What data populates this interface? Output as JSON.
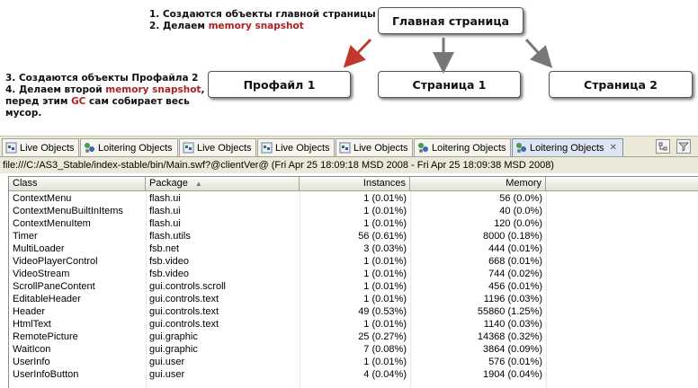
{
  "annotations": {
    "top_lines": [
      "1. Создаются объекты главной страницы",
      "2. Делаем "
    ],
    "top_highlight": "memory snapshot",
    "left": {
      "line1": "3. Создаются объекты Профайла 2",
      "line2_prefix": "4. Делаем второй ",
      "line2_highlight": "memory snapshot",
      "line2_suffix": ",",
      "line3_prefix": "перед этим ",
      "line3_highlight": "GC",
      "line3_suffix": " сам собирает весь",
      "line4": "мусор."
    }
  },
  "diagram": {
    "main": "Главная страница",
    "profile": "Профайл 1",
    "page1": "Страница 1",
    "page2": "Страница 2"
  },
  "colors": {
    "highlight": "#b02020",
    "red_arrow": "#c0392b",
    "gray_arrow": "#777777"
  },
  "tabs": [
    {
      "label": "Live Objects",
      "icon": "live-objects-icon"
    },
    {
      "label": "Loitering Objects",
      "icon": "loitering-objects-icon"
    },
    {
      "label": "Live Objects",
      "icon": "live-objects-icon"
    },
    {
      "label": "Live Objects",
      "icon": "live-objects-icon"
    },
    {
      "label": "Live Objects",
      "icon": "live-objects-icon"
    },
    {
      "label": "Loitering Objects",
      "icon": "loitering-objects-icon"
    },
    {
      "label": "Loitering Objects",
      "icon": "loitering-objects-icon",
      "active": true
    }
  ],
  "path": "file:///C:/AS3_Stable/index-stable/bin/Main.swf?@clientVer@ (Fri Apr 25 18:09:18 MSD 2008 - Fri Apr 25 18:09:38 MSD 2008)",
  "table": {
    "headers": [
      "Class",
      "Package",
      "Instances",
      "Memory"
    ],
    "rows": [
      [
        "ContextMenu",
        "flash.ui",
        "1 (0.01%)",
        "56 (0.0%)"
      ],
      [
        "ContextMenuBuiltInItems",
        "flash.ui",
        "1 (0.01%)",
        "40 (0.0%)"
      ],
      [
        "ContextMenuItem",
        "flash.ui",
        "1 (0.01%)",
        "120 (0.0%)"
      ],
      [
        "Timer",
        "flash.utils",
        "56 (0.61%)",
        "8000 (0.18%)"
      ],
      [
        "MultiLoader",
        "fsb.net",
        "3 (0.03%)",
        "444 (0.01%)"
      ],
      [
        "VideoPlayerControl",
        "fsb.video",
        "1 (0.01%)",
        "668 (0.01%)"
      ],
      [
        "VideoStream",
        "fsb.video",
        "1 (0.01%)",
        "744 (0.02%)"
      ],
      [
        "ScrollPaneContent",
        "gui.controls.scroll",
        "1 (0.01%)",
        "456 (0.01%)"
      ],
      [
        "EditableHeader",
        "gui.controls.text",
        "1 (0.01%)",
        "1196 (0.03%)"
      ],
      [
        "Header",
        "gui.controls.text",
        "49 (0.53%)",
        "55860 (1.25%)"
      ],
      [
        "HtmlText",
        "gui.controls.text",
        "1 (0.01%)",
        "1140 (0.03%)"
      ],
      [
        "RemotePicture",
        "gui.graphic",
        "25 (0.27%)",
        "14368 (0.32%)"
      ],
      [
        "WaitIcon",
        "gui.graphic",
        "7 (0.08%)",
        "3864 (0.09%)"
      ],
      [
        "UserInfo",
        "gui.user",
        "1 (0.01%)",
        "576 (0.01%)"
      ],
      [
        "UserInfoButton",
        "gui.user",
        "4 (0.04%)",
        "1904 (0.04%)"
      ]
    ]
  }
}
